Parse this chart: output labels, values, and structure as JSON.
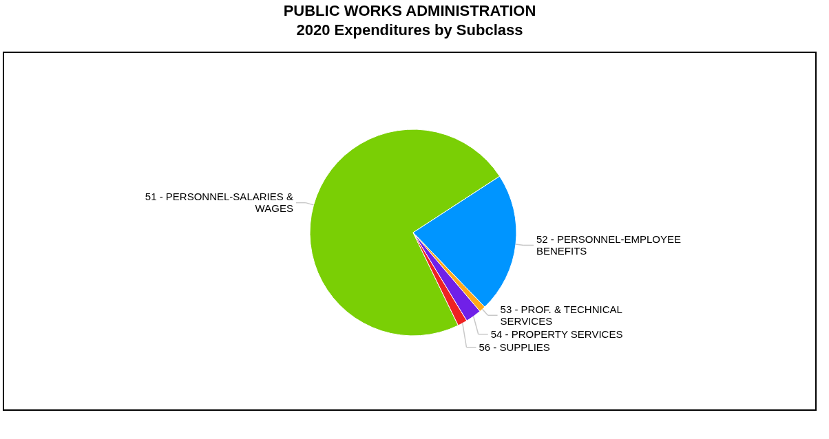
{
  "chart_data": {
    "type": "pie",
    "title": "PUBLIC WORKS ADMINISTRATION\n2020 Expenditures by Subclass",
    "categories": [
      "51 - PERSONNEL-SALARIES & WAGES",
      "52 - PERSONNEL-EMPLOYEE BENEFITS",
      "53 - PROF. & TECHNICAL SERVICES",
      "54 - PROPERTY SERVICES",
      "56 - SUPPLIES"
    ],
    "values": [
      73,
      22,
      1,
      2.5,
      1.5
    ],
    "colors": [
      "#7acf05",
      "#0095ff",
      "#ffa81a",
      "#7020e8",
      "#ee2222"
    ],
    "legend": false
  }
}
